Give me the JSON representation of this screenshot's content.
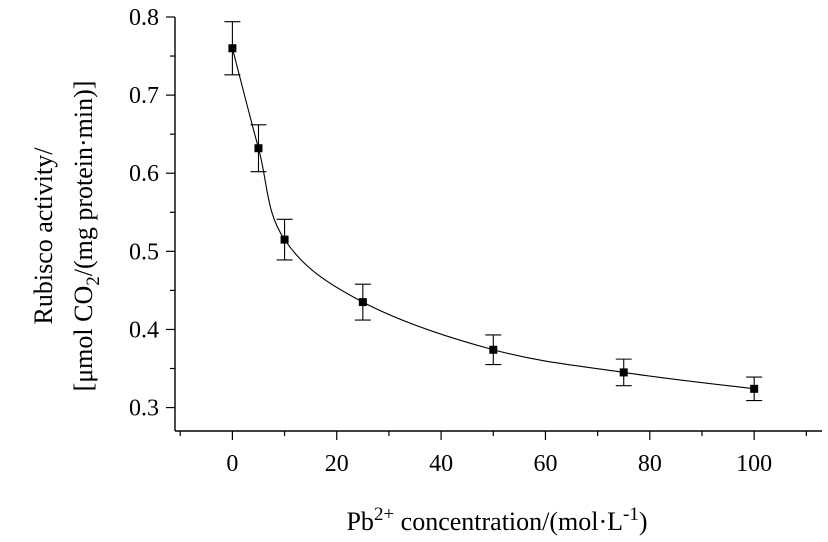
{
  "chart_data": {
    "type": "line",
    "x": [
      0,
      5,
      10,
      25,
      50,
      75,
      100
    ],
    "series": [
      {
        "values": [
          0.76,
          0.632,
          0.515,
          0.435,
          0.374,
          0.345,
          0.324
        ],
        "errors": [
          0.034,
          0.03,
          0.026,
          0.023,
          0.019,
          0.017,
          0.015
        ],
        "color": "#000000",
        "marker": "square"
      }
    ],
    "xlabel": {
      "base": "Pb",
      "sup": "2+",
      "mid": " concentration/(mol·L",
      "sup2": "-1",
      "end": ")"
    },
    "ylabel": {
      "line1": "Rubisco activity/",
      "line2_start": "[μmol CO",
      "line2_sub": "2",
      "line2_end": "/(mg protein·min)]"
    },
    "xlim": [
      -11,
      113
    ],
    "ylim": [
      0.27,
      0.8
    ],
    "xticks": [
      0,
      20,
      40,
      60,
      80,
      100
    ],
    "yticks": [
      0.3,
      0.4,
      0.5,
      0.6,
      0.7,
      0.8
    ],
    "xtick_labels": [
      "0",
      "20",
      "40",
      "60",
      "80",
      "100"
    ],
    "ytick_labels": [
      "0.3",
      "0.4",
      "0.5",
      "0.6",
      "0.7",
      "0.8"
    ],
    "grid": false,
    "legend": "none"
  }
}
